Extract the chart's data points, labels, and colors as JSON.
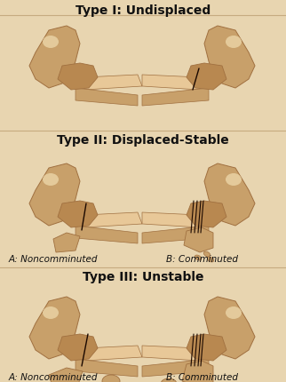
{
  "type1_label": "Type I: Undisplaced",
  "type2_label": "Type II: Displaced-Stable",
  "type3_label": "Type III: Unstable",
  "sub_label_A": "A: Noncomminuted",
  "sub_label_B": "B: Comminuted",
  "label_color": "#111111",
  "bg_color": "#e8d5b0",
  "panel_bg": "#dfc9a0",
  "bone_tan": "#c8a06a",
  "bone_light": "#e8c898",
  "bone_dark": "#a07040",
  "bone_shadow": "#b88850",
  "bone_highlight": "#f0ddb0",
  "crack_color": "#1a0800",
  "divider_color": "#b09060",
  "fig_width": 3.22,
  "fig_height": 4.31,
  "dpi": 100
}
